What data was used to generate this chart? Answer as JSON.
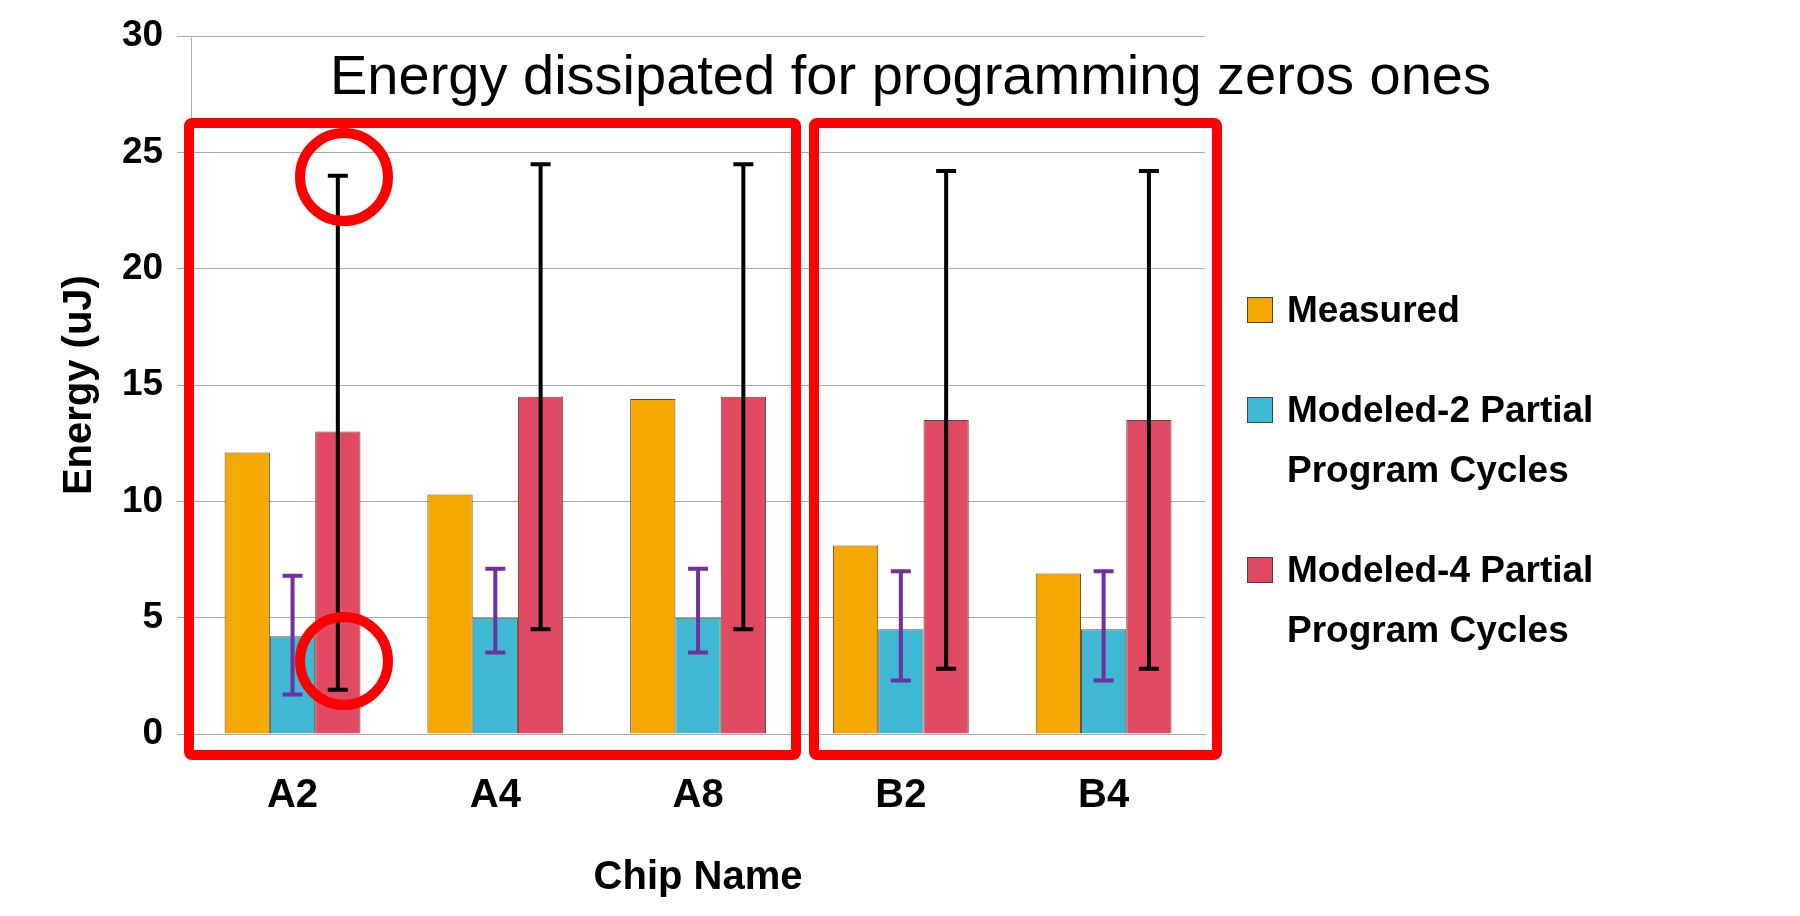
{
  "chart_data": {
    "type": "bar",
    "title": "Energy dissipated for programming zeros",
    "annotations": [
      "ones"
    ],
    "xlabel": "Chip Name",
    "ylabel": "Energy (uJ)",
    "categories": [
      "A2",
      "A4",
      "A8",
      "B2",
      "B4"
    ],
    "series": [
      {
        "name": "Measured",
        "color": "#f5a800",
        "values": [
          12.1,
          10.3,
          14.4,
          8.1,
          6.9
        ]
      },
      {
        "name": "Modeled-2 Partial Program Cycles",
        "color": "#3fb8d4",
        "values": [
          4.2,
          5.0,
          5.0,
          4.5,
          4.5
        ],
        "errors": [
          [
            1.7,
            6.8
          ],
          [
            3.5,
            7.1
          ],
          [
            3.5,
            7.1
          ],
          [
            2.3,
            7.0
          ],
          [
            2.3,
            7.0
          ]
        ]
      },
      {
        "name": "Modeled-4 Partial Program Cycles",
        "color": "#e04a62",
        "values": [
          13.0,
          14.5,
          14.5,
          13.5,
          13.5
        ],
        "errors": [
          [
            1.9,
            24.0
          ],
          [
            4.5,
            24.5
          ],
          [
            4.5,
            24.5
          ],
          [
            2.8,
            24.2
          ],
          [
            2.8,
            24.2
          ]
        ]
      }
    ],
    "ylim": [
      0,
      30
    ],
    "yticks": [
      0,
      5,
      10,
      15,
      20,
      25,
      30
    ],
    "grid": "y",
    "legend": "right"
  }
}
